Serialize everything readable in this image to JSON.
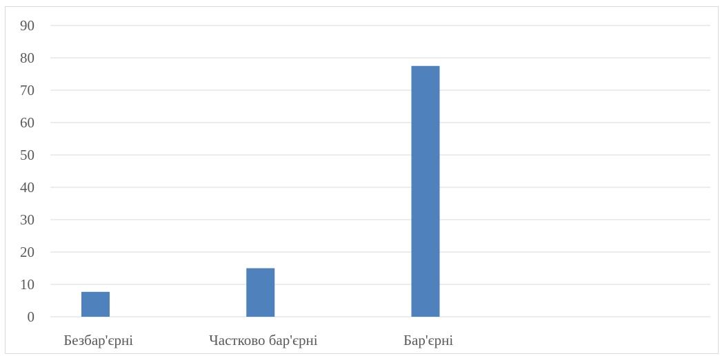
{
  "chart_data": {
    "type": "bar",
    "categories": [
      "Безбар'єрні",
      "Частково бар'єрні",
      "Бар'єрні",
      ""
    ],
    "values": [
      7.7,
      15,
      77.5,
      null
    ],
    "title": "",
    "xlabel": "",
    "ylabel": "",
    "ylim": [
      0,
      90
    ],
    "yticks": [
      0,
      10,
      20,
      30,
      40,
      50,
      60,
      70,
      80,
      90
    ],
    "grid": true,
    "legend": "none",
    "bar_color": "#4f81bd",
    "grid_color": "#d9d9d9"
  }
}
